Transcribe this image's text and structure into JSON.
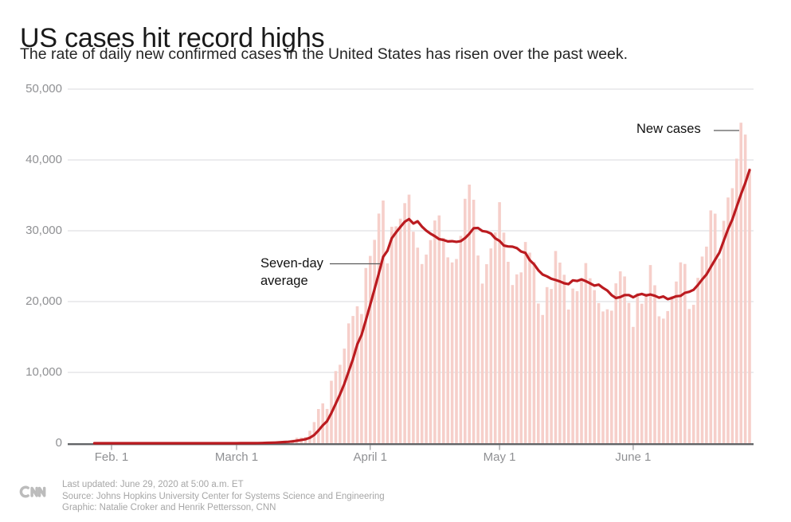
{
  "header": {
    "title": "US cases hit record highs",
    "subtitle": "The rate of daily new confirmed cases in the United States has risen over the past week."
  },
  "annotations": {
    "seven_day_average": "Seven-day average",
    "new_cases": "New cases"
  },
  "footer": {
    "logo": "cnn-logo",
    "last_updated": "Last updated: June 29, 2020 at 5:00 a.m. ET",
    "source": "Source: Johns Hopkins University Center for Systems Science and Engineering",
    "credit": "Graphic: Natalie Croker and Henrik Pettersson, CNN"
  },
  "chart_data": {
    "type": "bar",
    "title": "US cases hit record highs",
    "start_date": "2020-01-22",
    "end_date": "2020-06-28",
    "ylim": [
      0,
      50000
    ],
    "grid": "horizontal",
    "legend_position": "inline-annotations",
    "y_ticks": [
      {
        "label": "0",
        "value": 0
      },
      {
        "label": "10,000",
        "value": 10000
      },
      {
        "label": "20,000",
        "value": 20000
      },
      {
        "label": "30,000",
        "value": 30000
      },
      {
        "label": "40,000",
        "value": 40000
      },
      {
        "label": "50,000",
        "value": 50000
      }
    ],
    "x_ticks": [
      {
        "label": "Feb. 1",
        "day_index": 10
      },
      {
        "label": "March 1",
        "day_index": 39
      },
      {
        "label": "April 1",
        "day_index": 70
      },
      {
        "label": "May 1",
        "day_index": 100
      },
      {
        "label": "June 1",
        "day_index": 131
      }
    ],
    "series": [
      {
        "name": "New cases",
        "type": "bar",
        "color": "#f6cfca",
        "values": [
          1,
          0,
          1,
          0,
          3,
          0,
          0,
          0,
          0,
          3,
          1,
          0,
          3,
          0,
          0,
          1,
          0,
          3,
          0,
          0,
          1,
          1,
          1,
          0,
          0,
          0,
          0,
          0,
          1,
          0,
          1,
          0,
          0,
          1,
          0,
          18,
          0,
          1,
          6,
          3,
          20,
          14,
          22,
          34,
          74,
          105,
          95,
          121,
          200,
          271,
          287,
          351,
          511,
          777,
          823,
          887,
          1766,
          2988,
          4835,
          5632,
          4848,
          8821,
          10189,
          11075,
          13355,
          16916,
          17965,
          19332,
          18251,
          24742,
          26449,
          28722,
          32425,
          34272,
          25398,
          30561,
          30613,
          31709,
          33901,
          35098,
          29861,
          27620,
          25306,
          26641,
          28680,
          31451,
          32165,
          29002,
          26243,
          25528,
          26014,
          29276,
          34519,
          36519,
          34379,
          26509,
          22541,
          25282,
          27510,
          29763,
          34032,
          29744,
          25621,
          22335,
          23841,
          24128,
          28420,
          26906,
          25612,
          19731,
          18117,
          22048,
          21774,
          27143,
          25508,
          23792,
          18873,
          21841,
          21467,
          23285,
          25434,
          23290,
          21614,
          19790,
          18611,
          18910,
          18721,
          22577,
          24266,
          23553,
          19807,
          16429,
          21184,
          19699,
          21140,
          25155,
          22302,
          17919,
          17598,
          18664,
          20801,
          22834,
          25540,
          25314,
          18958,
          19543,
          23351,
          26357,
          27762,
          32881,
          32411,
          26079,
          31402,
          34700,
          36015,
          40184,
          45255,
          43581,
          38800
        ]
      },
      {
        "name": "Seven-day average",
        "type": "line",
        "color": "#bb1b20",
        "window": 7,
        "derivation": "trailing 7-day mean of the New cases daily values"
      }
    ]
  }
}
